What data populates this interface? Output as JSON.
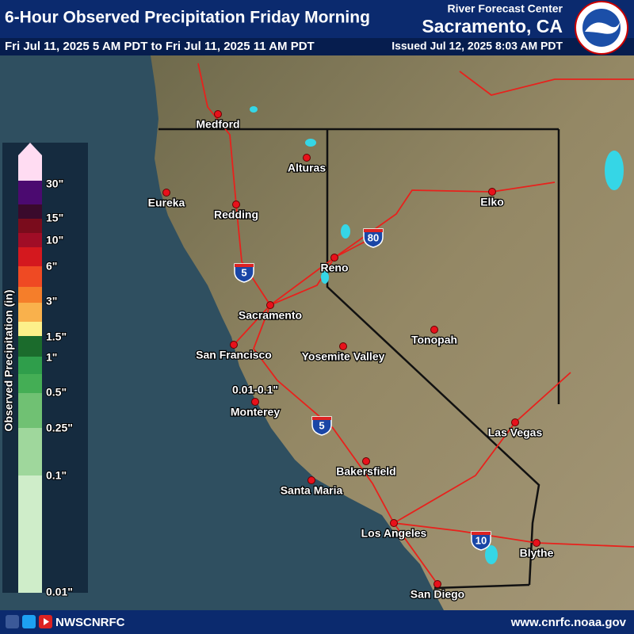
{
  "header": {
    "title": "6-Hour Observed Precipitation Friday Morning",
    "subtitle": "Fri Jul 11, 2025 5 AM PDT to Fri Jul 11, 2025 11 AM PDT",
    "center": "River Forecast Center",
    "office": "Sacramento, CA",
    "issued": "Issued Jul 12, 2025 8:03 AM PDT"
  },
  "legend": {
    "title": "Observed Precipitation (in)",
    "labels": [
      "30\"",
      "15\"",
      "10\"",
      "6\"",
      "3\"",
      "1.5\"",
      "1\"",
      "0.5\"",
      "0.25\"",
      "0.1\"",
      "0.01\""
    ]
  },
  "annotation": "0.01-0.1\"",
  "cities": [
    "Medford",
    "Alturas",
    "Eureka",
    "Redding",
    "Elko",
    "Reno",
    "Sacramento",
    "San Francisco",
    "Yosemite Valley",
    "Tonopah",
    "Monterey",
    "Las Vegas",
    "Bakersfield",
    "Santa Maria",
    "Los Angeles",
    "Blythe",
    "San Diego"
  ],
  "shields": [
    "5",
    "80",
    "5",
    "10"
  ],
  "footer": {
    "handle": "NWSCNRFC",
    "url": "www.cnrfc.noaa.gov"
  }
}
